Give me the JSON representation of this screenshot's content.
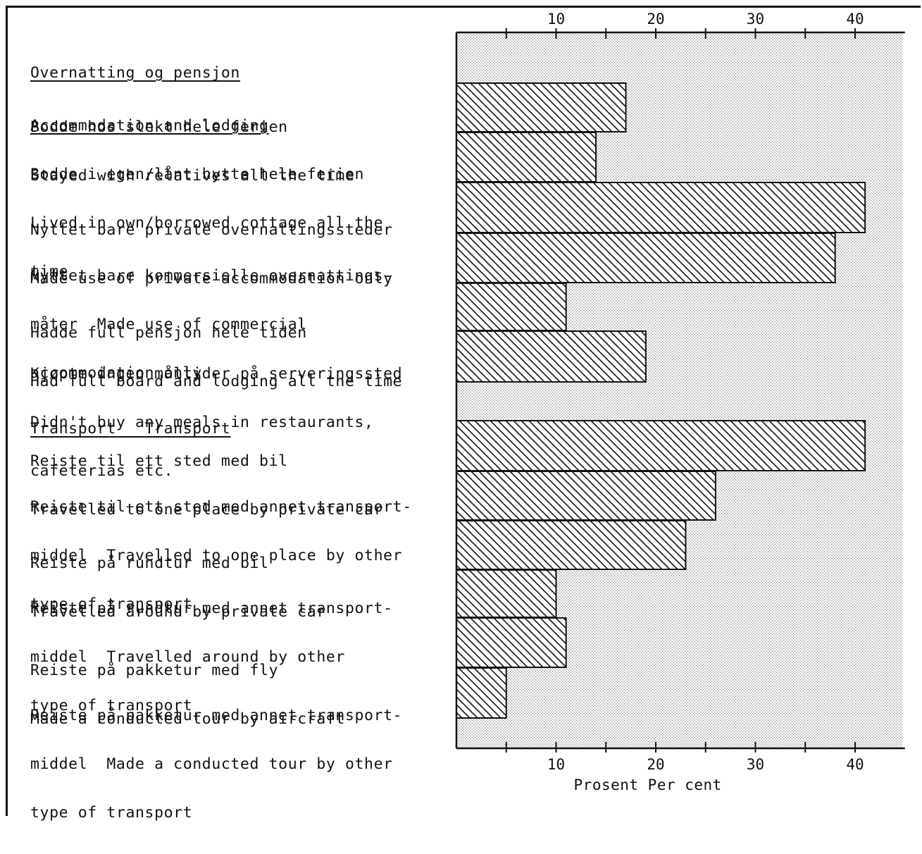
{
  "chart_data": {
    "type": "bar",
    "orientation": "horizontal",
    "xlabel": "Prosent  Per cent",
    "xlim": [
      0,
      45
    ],
    "xticks_major": [
      10,
      20,
      30,
      40
    ],
    "xticks_minor": [
      5,
      15,
      25,
      35
    ],
    "grid": false,
    "sections": [
      {
        "heading": [
          "Overnatting og pensjon",
          "Accommodation and lodging"
        ],
        "items": [
          {
            "lines": [
              "Bodde hos slekt hele ferien",
              "Stayed with relatives all the time"
            ],
            "value": 17
          },
          {
            "lines": [
              "Bodde i egen/lånt hytte hele ferien",
              "Lived in own/borrowed cottage all the",
              "time"
            ],
            "value": 14
          },
          {
            "lines": [
              "Nyttet bare private overnattingssteder",
              "Made use of private accommodation only"
            ],
            "value": 41
          },
          {
            "lines": [
              "Nyttet bare kommersielle overnattings-",
              "måter  Made use of commercial",
              "accommodation only"
            ],
            "value": 38
          },
          {
            "lines": [
              "Hadde full pensjon hele tiden",
              "Had full board and lodging all the time"
            ],
            "value": 11
          },
          {
            "lines": [
              "Kjøpte ingen måltider på serveringssted",
              "Didn't buy any meals in restaurants,",
              "cafeterias etc."
            ],
            "value": 19
          }
        ]
      },
      {
        "heading": [
          "Transport   Transport"
        ],
        "items": [
          {
            "lines": [
              "Reiste til ett sted med bil",
              "Travelled to one place by private car"
            ],
            "value": 41
          },
          {
            "lines": [
              "Reiste til ett sted med annet transport-",
              "middel  Travelled to one place by other",
              "type of transport"
            ],
            "value": 26
          },
          {
            "lines": [
              "Reiste på rundtur med bil",
              "Travelled around by private car"
            ],
            "value": 23
          },
          {
            "lines": [
              "Reiste på rundtur med annet transport-",
              "middel  Travelled around by other",
              "type of transport"
            ],
            "value": 10
          },
          {
            "lines": [
              "Reiste på pakketur med fly",
              "Made a conducted tour by aircraft"
            ],
            "value": 11
          },
          {
            "lines": [
              "Reiste på pakketur med annet transport-",
              "middel  Made a conducted tour by other",
              "type of transport"
            ],
            "value": 5
          }
        ]
      }
    ]
  }
}
